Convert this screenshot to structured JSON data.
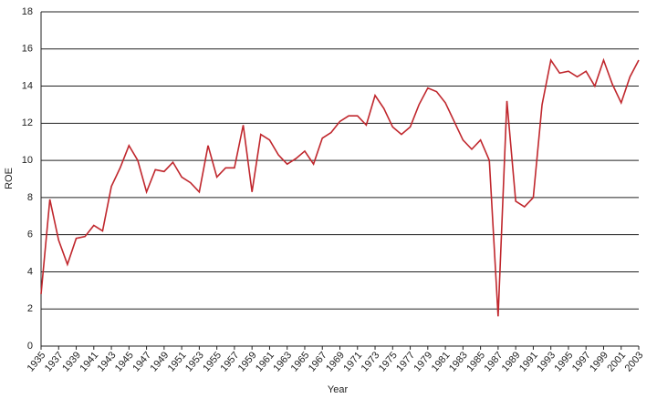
{
  "chart_data": {
    "type": "line",
    "x_label": "Year",
    "y_label": "ROE",
    "x": [
      1935,
      1936,
      1937,
      1938,
      1939,
      1940,
      1941,
      1942,
      1943,
      1944,
      1945,
      1946,
      1947,
      1948,
      1949,
      1950,
      1951,
      1952,
      1953,
      1954,
      1955,
      1956,
      1957,
      1958,
      1959,
      1960,
      1961,
      1962,
      1963,
      1964,
      1965,
      1966,
      1967,
      1968,
      1969,
      1970,
      1971,
      1972,
      1973,
      1974,
      1975,
      1976,
      1977,
      1978,
      1979,
      1980,
      1981,
      1982,
      1983,
      1984,
      1985,
      1986,
      1987,
      1988,
      1989,
      1990,
      1991,
      1992,
      1993,
      1994,
      1995,
      1996,
      1997,
      1998,
      1999,
      2000,
      2001,
      2002,
      2003
    ],
    "values": [
      2.8,
      7.9,
      5.7,
      4.4,
      5.8,
      5.9,
      6.5,
      6.2,
      8.6,
      9.6,
      10.8,
      10.0,
      8.3,
      9.5,
      9.4,
      9.9,
      9.1,
      8.8,
      8.3,
      10.8,
      9.1,
      9.6,
      9.6,
      11.9,
      8.3,
      11.4,
      11.1,
      10.3,
      9.8,
      10.1,
      10.5,
      9.8,
      11.2,
      11.5,
      12.1,
      12.4,
      12.4,
      11.9,
      13.5,
      12.8,
      11.8,
      11.4,
      11.8,
      13.0,
      13.9,
      13.7,
      13.1,
      12.1,
      11.1,
      10.6,
      11.1,
      10.0,
      1.6,
      13.2,
      7.8,
      7.5,
      8.0,
      13.0,
      15.4,
      14.7,
      14.8,
      14.5,
      14.8,
      14.0,
      15.4,
      14.1,
      13.1,
      14.5,
      15.4
    ],
    "color": "#c0272d",
    "xlim": [
      1935,
      2003
    ],
    "xticks": [
      1935,
      1937,
      1939,
      1941,
      1943,
      1945,
      1947,
      1949,
      1951,
      1953,
      1955,
      1957,
      1959,
      1961,
      1963,
      1965,
      1967,
      1969,
      1971,
      1973,
      1975,
      1977,
      1979,
      1981,
      1983,
      1985,
      1987,
      1989,
      1991,
      1993,
      1995,
      1997,
      1999,
      2001,
      2003
    ],
    "ylim": [
      0,
      18
    ],
    "yticks": [
      0,
      2,
      4,
      6,
      8,
      10,
      12,
      14,
      16,
      18
    ],
    "grid": true
  }
}
